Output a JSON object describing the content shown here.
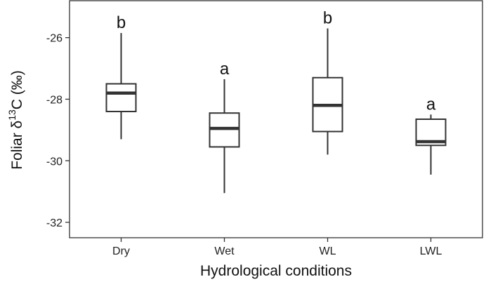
{
  "chart_data": {
    "type": "box",
    "xlabel": "Hydrological conditions",
    "ylabel_prefix": "Foliar δ",
    "ylabel_superscript": "13",
    "ylabel_suffix": "C (‰)",
    "ylim": [
      -32.5,
      -24.8
    ],
    "yticks": [
      -32,
      -30,
      -28,
      -26
    ],
    "ytick_labels": [
      "-32",
      "-30",
      "-28",
      "-26"
    ],
    "grid": false,
    "categories": [
      "Dry",
      "Wet",
      "WL",
      "LWL"
    ],
    "boxes": [
      {
        "category": "Dry",
        "whisker_low": -29.3,
        "q1": -28.4,
        "median": -27.8,
        "q3": -27.5,
        "whisker_high": -25.85,
        "letter": "b"
      },
      {
        "category": "Wet",
        "whisker_low": -31.05,
        "q1": -29.55,
        "median": -28.95,
        "q3": -28.45,
        "whisker_high": -27.35,
        "letter": "a"
      },
      {
        "category": "WL",
        "whisker_low": -29.8,
        "q1": -29.05,
        "median": -28.2,
        "q3": -27.3,
        "whisker_high": -25.7,
        "letter": "b"
      },
      {
        "category": "LWL",
        "whisker_low": -30.45,
        "q1": -29.5,
        "median": -29.38,
        "q3": -28.65,
        "whisker_high": -28.5,
        "letter": "a"
      }
    ],
    "colors": {
      "box_stroke": "#333333",
      "box_fill": "#ffffff",
      "axis": "#333333"
    }
  }
}
